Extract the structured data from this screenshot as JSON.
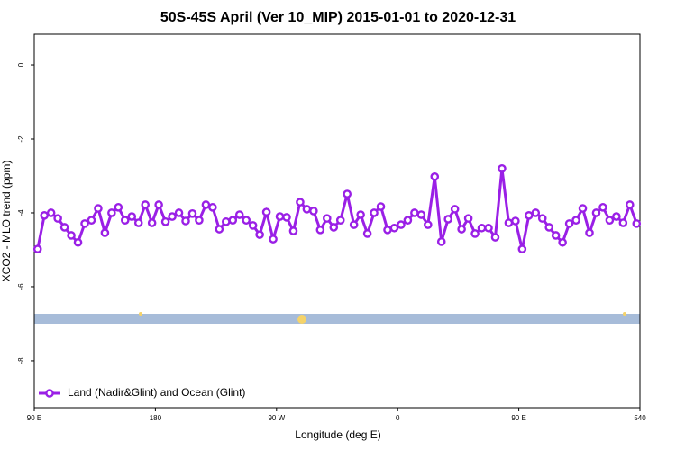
{
  "chart_data": {
    "type": "line",
    "title": "50S-45S April (Ver 10_MIP)   2015-01-01 to 2020-12-31",
    "x_label": "Longitude (deg E)",
    "y_label": "XCO2 - MLO trend (ppm)",
    "xlim": [
      90,
      540
    ],
    "ylim": [
      -9.27,
      0.83
    ],
    "xticks": [
      {
        "value": 90,
        "label": "90 E"
      },
      180,
      {
        "value": 270,
        "label": "90 W"
      },
      {
        "value": 360,
        "label": "0"
      },
      {
        "value": 450,
        "label": "90 E"
      },
      540
    ],
    "yticks": [
      -8,
      -6,
      -4,
      -2,
      0
    ],
    "legend": "bottom-left",
    "x": [
      92.5,
      97.5,
      102.5,
      107.5,
      112.5,
      117.5,
      122.5,
      127.5,
      132.5,
      137.5,
      142.5,
      147.5,
      152.5,
      157.5,
      162.5,
      167.5,
      172.5,
      177.5,
      182.5,
      187.5,
      192.5,
      197.5,
      202.5,
      207.5,
      212.5,
      217.5,
      222.5,
      227.5,
      232.5,
      237.5,
      242.5,
      247.5,
      252.5,
      257.5,
      262.5,
      267.5,
      272.5,
      277.5,
      282.5,
      287.5,
      292.5,
      297.5,
      302.5,
      307.5,
      312.5,
      317.5,
      322.5,
      327.5,
      332.5,
      337.5,
      342.5,
      347.5,
      352.5,
      357.5,
      362.5,
      367.5,
      372.5,
      377.5,
      382.5,
      387.5,
      392.5,
      397.5,
      402.5,
      407.5,
      412.5,
      417.5,
      422.5,
      427.5,
      432.5,
      437.5,
      442.5,
      447.5,
      452.5,
      457.5,
      462.5,
      467.5,
      472.5,
      477.5,
      482.5,
      487.5,
      492.5,
      497.5,
      502.5,
      507.5,
      512.5,
      517.5,
      522.5,
      527.5,
      532.5,
      537.5
    ],
    "series": [
      {
        "name": "Land (Nadir&Glint) and Ocean (Glint)",
        "color": "#9a1fe6",
        "values": [
          -4.98,
          -4.07,
          -4.0,
          -4.15,
          -4.39,
          -4.61,
          -4.8,
          -4.29,
          -4.2,
          -3.88,
          -4.54,
          -4.0,
          -3.85,
          -4.2,
          -4.1,
          -4.27,
          -3.78,
          -4.27,
          -3.78,
          -4.24,
          -4.1,
          -4.0,
          -4.22,
          -4.02,
          -4.2,
          -3.78,
          -3.85,
          -4.44,
          -4.24,
          -4.2,
          -4.05,
          -4.2,
          -4.34,
          -4.59,
          -3.98,
          -4.71,
          -4.1,
          -4.12,
          -4.49,
          -3.71,
          -3.9,
          -3.95,
          -4.46,
          -4.15,
          -4.39,
          -4.2,
          -3.49,
          -4.32,
          -4.05,
          -4.56,
          -4.0,
          -3.83,
          -4.46,
          -4.41,
          -4.32,
          -4.2,
          -4.0,
          -4.05,
          -4.32,
          -3.02,
          -4.78,
          -4.17,
          -3.9,
          -4.44,
          -4.15,
          -4.56,
          -4.41,
          -4.41,
          -4.66,
          -2.8,
          -4.27,
          -4.22,
          -4.98,
          -4.07,
          -4.0,
          -4.15,
          -4.39,
          -4.61,
          -4.8,
          -4.29,
          -4.2,
          -3.88,
          -4.54,
          -4.0,
          -3.85,
          -4.2,
          -4.1,
          -4.27,
          -3.78,
          -4.29
        ]
      }
    ]
  }
}
